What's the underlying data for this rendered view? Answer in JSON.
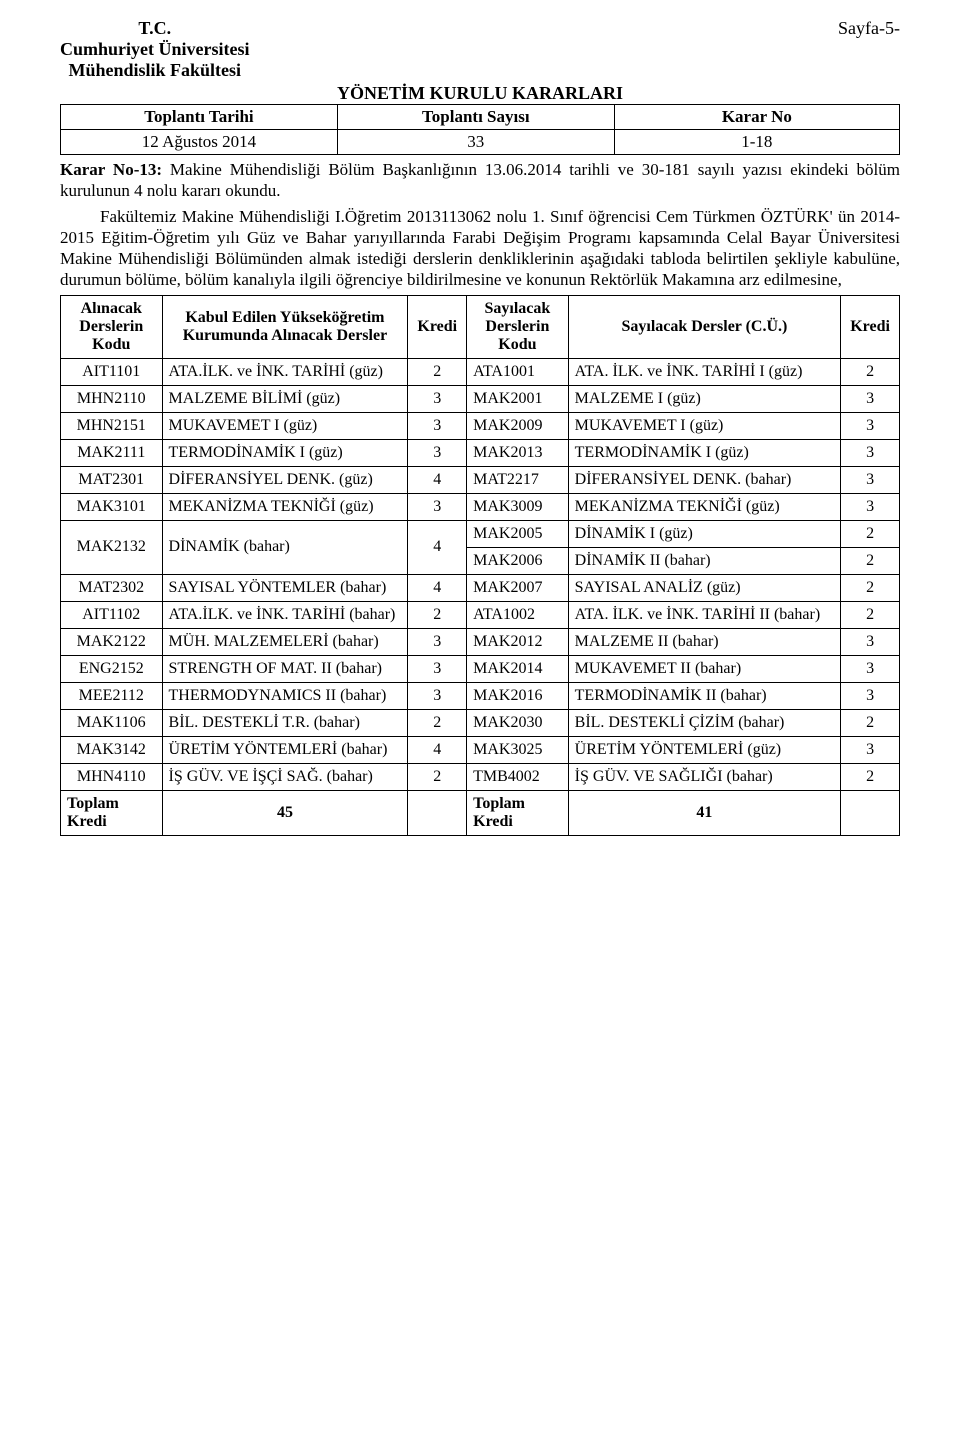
{
  "header": {
    "tc": "T.C.",
    "university": "Cumhuriyet Üniversitesi",
    "faculty": "Mühendislik Fakültesi",
    "page_no": "Sayfa-5-",
    "title": "YÖNETİM KURULU KARARLARI"
  },
  "meta": {
    "h1": "Toplantı Tarihi",
    "h2": "Toplantı Sayısı",
    "h3": "Karar No",
    "v1": "12 Ağustos 2014",
    "v2": "33",
    "v3": "1-18"
  },
  "karar_label": "Karar No-13:",
  "karar_text": " Makine Mühendisliği Bölüm Başkanlığının 13.06.2014 tarihli ve 30-181 sayılı yazısı ekindeki bölüm kurulunun 4 nolu kararı okundu.",
  "body_text": "Fakültemiz Makine Mühendisliği I.Öğretim 2013113062 nolu 1. Sınıf öğrencisi Cem Türkmen ÖZTÜRK' ün 2014-2015 Eğitim-Öğretim yılı Güz ve Bahar yarıyıllarında Farabi Değişim Programı kapsamında Celal Bayar Üniversitesi Makine Mühendisliği Bölümünden almak istediği derslerin denkliklerinin aşağıdaki tabloda belirtilen şekliyle kabulüne, durumun bölüme, bölüm kanalıyla ilgili öğrenciye bildirilmesine ve konunun Rektörlük Makamına arz edilmesine,",
  "thead": {
    "c0": "Alınacak Derslerin Kodu",
    "c1": "Kabul Edilen Yükseköğretim Kurumunda Alınacak Dersler",
    "c2": "Kredi",
    "c3": "Sayılacak Derslerin Kodu",
    "c4": "Sayılacak Dersler (C.Ü.)",
    "c5": "Kredi"
  },
  "rows": [
    {
      "a": "AIT1101",
      "b": "ATA.İLK. ve İNK. TARİHİ (güz)",
      "c": "2",
      "d": "ATA1001",
      "e": "ATA. İLK. ve İNK. TARİHİ I (güz)",
      "f": "2"
    },
    {
      "a": "MHN2110",
      "b": "MALZEME BİLİMİ (güz)",
      "c": "3",
      "d": "MAK2001",
      "e": "MALZEME I (güz)",
      "f": "3"
    },
    {
      "a": "MHN2151",
      "b": "MUKAVEMET I (güz)",
      "c": "3",
      "d": "MAK2009",
      "e": "MUKAVEMET I (güz)",
      "f": "3"
    },
    {
      "a": "MAK2111",
      "b": "TERMODİNAMİK I (güz)",
      "c": "3",
      "d": "MAK2013",
      "e": "TERMODİNAMİK I (güz)",
      "f": "3"
    },
    {
      "a": "MAT2301",
      "b": "DİFERANSİYEL DENK. (güz)",
      "c": "4",
      "d": "MAT2217",
      "e": "DİFERANSİYEL DENK. (bahar)",
      "f": "3"
    },
    {
      "a": "MAK3101",
      "b": "MEKANİZMA TEKNİĞİ (güz)",
      "c": "3",
      "d": "MAK3009",
      "e": "MEKANİZMA TEKNİĞİ (güz)",
      "f": "3"
    }
  ],
  "dinamik": {
    "a": "MAK2132",
    "b": "DİNAMİK (bahar)",
    "c": "4",
    "d1": "MAK2005",
    "e1": "DİNAMİK I (güz)",
    "f1": "2",
    "d2": "MAK2006",
    "e2": "DİNAMİK II (bahar)",
    "f2": "2"
  },
  "rows2": [
    {
      "a": "MAT2302",
      "b": "SAYISAL YÖNTEMLER (bahar)",
      "c": "4",
      "d": "MAK2007",
      "e": "SAYISAL ANALİZ (güz)",
      "f": "2"
    },
    {
      "a": "AIT1102",
      "b": "ATA.İLK. ve İNK. TARİHİ (bahar)",
      "c": "2",
      "d": "ATA1002",
      "e": "ATA. İLK. ve İNK. TARİHİ II (bahar)",
      "f": "2"
    },
    {
      "a": "MAK2122",
      "b": "MÜH. MALZEMELERİ (bahar)",
      "c": "3",
      "d": "MAK2012",
      "e": "MALZEME II (bahar)",
      "f": "3"
    },
    {
      "a": "ENG2152",
      "b": "STRENGTH OF MAT. II (bahar)",
      "c": "3",
      "d": "MAK2014",
      "e": "MUKAVEMET II (bahar)",
      "f": "3"
    },
    {
      "a": "MEE2112",
      "b": "THERMODYNAMICS II (bahar)",
      "c": "3",
      "d": "MAK2016",
      "e": "TERMODİNAMİK II (bahar)",
      "f": "3"
    },
    {
      "a": "MAK1106",
      "b": "BİL. DESTEKLİ T.R. (bahar)",
      "c": "2",
      "d": "MAK2030",
      "e": "BİL. DESTEKLİ ÇİZİM (bahar)",
      "f": "2"
    },
    {
      "a": "MAK3142",
      "b": "ÜRETİM YÖNTEMLERİ (bahar)",
      "c": "4",
      "d": "MAK3025",
      "e": "ÜRETİM YÖNTEMLERİ (güz)",
      "f": "3"
    },
    {
      "a": "MHN4110",
      "b": "İŞ GÜV. VE İŞÇİ SAĞ. (bahar)",
      "c": "2",
      "d": "TMB4002",
      "e": "İŞ GÜV. VE SAĞLIĞI (bahar)",
      "f": "2"
    }
  ],
  "totals": {
    "label_left": "Toplam Kredi",
    "val_left": "45",
    "label_right": "Toplam Kredi",
    "val_right": "41"
  }
}
